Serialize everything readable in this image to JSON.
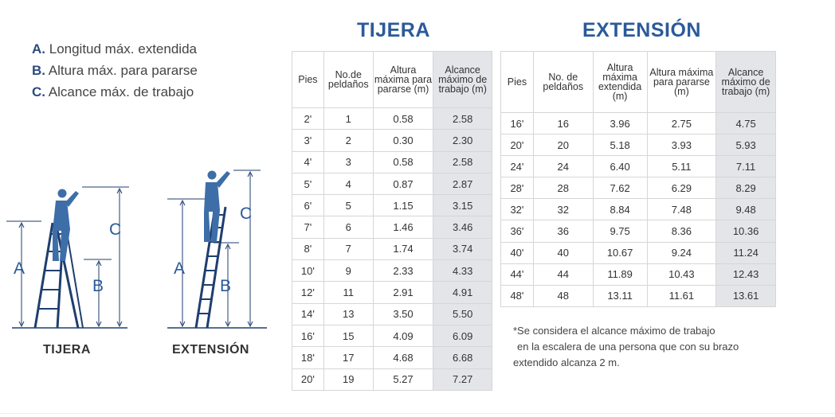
{
  "legend": [
    {
      "letter": "A.",
      "text": "Longitud máx. extendida"
    },
    {
      "letter": "B.",
      "text": "Altura máx. para pararse"
    },
    {
      "letter": "C.",
      "text": "Alcance máx. de trabajo"
    }
  ],
  "figures": {
    "labels": {
      "a": "A",
      "b": "B",
      "c": "C"
    },
    "captions": {
      "tijera": "TIJERA",
      "extension": "EXTENSIÓN"
    },
    "colors": {
      "person": "#3d6ea8",
      "ladder": "#1f3e6e",
      "label": "#2b5a9a"
    }
  },
  "tijera": {
    "title": "TIJERA",
    "headers": [
      "Pies",
      "No.de peldaños",
      "Altura máxima para pararse (m)",
      "Alcance máximo de trabajo (m)"
    ],
    "rows": [
      [
        "2'",
        "1",
        "0.58",
        "2.58"
      ],
      [
        "3'",
        "2",
        "0.30",
        "2.30"
      ],
      [
        "4'",
        "3",
        "0.58",
        "2.58"
      ],
      [
        "5'",
        "4",
        "0.87",
        "2.87"
      ],
      [
        "6'",
        "5",
        "1.15",
        "3.15"
      ],
      [
        "7'",
        "6",
        "1.46",
        "3.46"
      ],
      [
        "8'",
        "7",
        "1.74",
        "3.74"
      ],
      [
        "10'",
        "9",
        "2.33",
        "4.33"
      ],
      [
        "12'",
        "11",
        "2.91",
        "4.91"
      ],
      [
        "14'",
        "13",
        "3.50",
        "5.50"
      ],
      [
        "16'",
        "15",
        "4.09",
        "6.09"
      ],
      [
        "18'",
        "17",
        "4.68",
        "6.68"
      ],
      [
        "20'",
        "19",
        "5.27",
        "7.27"
      ]
    ]
  },
  "extension": {
    "title": "EXTENSIÓN",
    "headers": [
      "Pies",
      "No. de peldaños",
      "Altura máxima extendida (m)",
      "Altura máxima para pararse (m)",
      "Alcance máximo de trabajo (m)"
    ],
    "rows": [
      [
        "16'",
        "16",
        "3.96",
        "2.75",
        "4.75"
      ],
      [
        "20'",
        "20",
        "5.18",
        "3.93",
        "5.93"
      ],
      [
        "24'",
        "24",
        "6.40",
        "5.11",
        "7.11"
      ],
      [
        "28'",
        "28",
        "7.62",
        "6.29",
        "8.29"
      ],
      [
        "32'",
        "32",
        "8.84",
        "7.48",
        "9.48"
      ],
      [
        "36'",
        "36",
        "9.75",
        "8.36",
        "10.36"
      ],
      [
        "40'",
        "40",
        "10.67",
        "9.24",
        "11.24"
      ],
      [
        "44'",
        "44",
        "11.89",
        "10.43",
        "12.43"
      ],
      [
        "48'",
        "48",
        "13.11",
        "11.61",
        "13.61"
      ]
    ]
  },
  "footnote": [
    "*Se considera el alcance máximo de trabajo",
    "en la escalera de una persona que con su brazo",
    "extendido alcanza 2 m."
  ]
}
